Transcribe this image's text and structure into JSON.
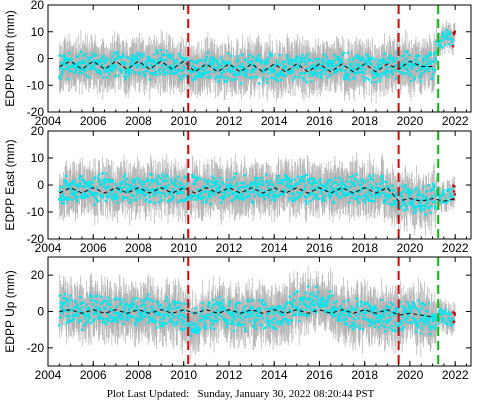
{
  "colors": {
    "data": "#00e5ee",
    "error_bars": "#b4b4b4",
    "model": "#000000",
    "event_red": "#e00000",
    "event_green": "#00c000",
    "recent": "#cc0000"
  },
  "footer": {
    "label": "Plot Last Updated:",
    "value": "Sunday, January 30, 2022 08:20:44 PST"
  },
  "chart_data": [
    {
      "type": "scatter",
      "ylabel": "EDPP North (mm)",
      "xlim": [
        2004,
        2022.7
      ],
      "ylim": [
        -20,
        20
      ],
      "yticks": [
        -20,
        -10,
        0,
        10,
        20
      ],
      "xticks": [
        2004,
        2006,
        2008,
        2010,
        2012,
        2014,
        2016,
        2018,
        2020,
        2022
      ],
      "x_tick_labels_shown": true,
      "series": [
        {
          "x": [
            2004.5,
            2005.0,
            2005.5,
            2006.0,
            2006.5,
            2007.0,
            2007.5,
            2008.0,
            2008.5,
            2009.0,
            2009.5,
            2010.0,
            2010.5,
            2011.0,
            2011.5,
            2012.0,
            2012.5,
            2013.0,
            2013.5,
            2014.0,
            2014.5,
            2015.0,
            2015.5,
            2016.0,
            2016.5,
            2017.0,
            2017.5,
            2018.0,
            2018.5,
            2019.0,
            2019.5,
            2020.0,
            2020.5,
            2021.0,
            2021.3,
            2021.6,
            2022.0
          ],
          "y": [
            -3,
            -2,
            -3,
            -2,
            -3,
            -2,
            -3,
            -2,
            -2.5,
            -2,
            -2.5,
            -3,
            -4,
            -3,
            -4,
            -3,
            -4,
            -3,
            -4,
            -3,
            -4,
            -3,
            -4,
            -3,
            -4,
            -3,
            -4,
            -3,
            -4,
            -3,
            -2,
            -3,
            -4,
            -2,
            6,
            8,
            7
          ]
        }
      ],
      "model_line": {
        "x": [
          2004.5,
          2005.0,
          2005.5,
          2006.0,
          2006.5,
          2007.0,
          2007.5,
          2008.0,
          2008.5,
          2009.0,
          2009.5,
          2010.0,
          2010.5,
          2011.0,
          2011.5,
          2012.0,
          2012.5,
          2013.0,
          2013.5,
          2014.0,
          2014.5,
          2015.0,
          2015.5,
          2016.0,
          2016.5,
          2017.0,
          2017.5,
          2018.0,
          2018.5,
          2019.0,
          2019.5,
          2020.0,
          2020.5,
          2021.0
        ],
        "y": [
          -3,
          -1,
          -4,
          -1,
          -4,
          -1,
          -4,
          -1,
          -4,
          -1,
          -4,
          -1,
          -5,
          -2,
          -5,
          -2,
          -5,
          -2,
          -5,
          -2,
          -5,
          -2,
          -5,
          -2,
          -5,
          -2,
          -5,
          -2,
          -5,
          -2,
          -4,
          -1,
          -3,
          -3
        ]
      },
      "events": [
        {
          "x": 2010.2,
          "color": "red"
        },
        {
          "x": 2019.5,
          "color": "red"
        },
        {
          "x": 2021.25,
          "color": "green"
        }
      ],
      "spread_mm": 5
    },
    {
      "type": "scatter",
      "ylabel": "EDPP East (mm)",
      "xlim": [
        2004,
        2022.7
      ],
      "ylim": [
        -20,
        20
      ],
      "yticks": [
        -20,
        -10,
        0,
        10,
        20
      ],
      "xticks": [
        2004,
        2006,
        2008,
        2010,
        2012,
        2014,
        2016,
        2018,
        2020,
        2022
      ],
      "x_tick_labels_shown": true,
      "series": [
        {
          "x": [
            2004.5,
            2005.0,
            2005.5,
            2006.0,
            2006.5,
            2007.0,
            2007.5,
            2008.0,
            2008.5,
            2009.0,
            2009.5,
            2010.0,
            2010.5,
            2011.0,
            2011.5,
            2012.0,
            2012.5,
            2013.0,
            2013.5,
            2014.0,
            2014.5,
            2015.0,
            2015.5,
            2016.0,
            2016.5,
            2017.0,
            2017.5,
            2018.0,
            2018.5,
            2019.0,
            2019.5,
            2020.0,
            2020.5,
            2021.0,
            2021.3,
            2021.6,
            2022.0
          ],
          "y": [
            -2,
            -2,
            -1,
            -2,
            -1,
            -2,
            -1,
            -2,
            -1,
            -2,
            -1,
            -2,
            -1,
            -2,
            -1,
            -2,
            -1,
            -2,
            -1,
            -2,
            -1,
            -2,
            -1,
            -2,
            -1,
            -2,
            -1,
            -2,
            -1,
            -2,
            -6,
            -5,
            -6,
            -5,
            -5,
            -4,
            -3
          ]
        }
      ],
      "model_line": {
        "x": [
          2004.5,
          2005.0,
          2005.5,
          2006.0,
          2006.5,
          2007.0,
          2007.5,
          2008.0,
          2008.5,
          2009.0,
          2009.5,
          2010.0,
          2010.5,
          2011.0,
          2011.5,
          2012.0,
          2012.5,
          2013.0,
          2013.5,
          2014.0,
          2014.5,
          2015.0,
          2015.5,
          2016.0,
          2016.5,
          2017.0,
          2017.5,
          2018.0,
          2018.5,
          2019.0,
          2019.5,
          2020.0,
          2020.5,
          2021.0,
          2021.5,
          2022.0
        ],
        "y": [
          -3,
          -1,
          -3,
          -1,
          -3,
          -1,
          -3,
          -1,
          -3,
          -1,
          -3,
          -1,
          -3,
          -1,
          -3,
          -1,
          -3,
          -1,
          -3,
          -1,
          -3,
          -1,
          -3,
          -1,
          -3,
          -1,
          -3,
          -1,
          -3,
          -1,
          -6,
          -5,
          -6,
          -5,
          -6,
          -5
        ]
      },
      "events": [
        {
          "x": 2010.2,
          "color": "red"
        },
        {
          "x": 2019.5,
          "color": "red"
        },
        {
          "x": 2021.25,
          "color": "green"
        }
      ],
      "spread_mm": 5
    },
    {
      "type": "scatter",
      "ylabel": "EDPP Up (mm)",
      "xlim": [
        2004,
        2022.7
      ],
      "ylim": [
        -30,
        30
      ],
      "yticks": [
        -20,
        0,
        20
      ],
      "xticks": [
        2004,
        2006,
        2008,
        2010,
        2012,
        2014,
        2016,
        2018,
        2020,
        2022
      ],
      "x_tick_labels_shown": true,
      "series": [
        {
          "x": [
            2004.5,
            2005.0,
            2005.5,
            2006.0,
            2006.5,
            2007.0,
            2007.5,
            2008.0,
            2008.5,
            2009.0,
            2009.5,
            2010.0,
            2010.5,
            2011.0,
            2011.5,
            2012.0,
            2012.5,
            2013.0,
            2013.5,
            2014.0,
            2014.5,
            2015.0,
            2015.5,
            2016.0,
            2016.5,
            2017.0,
            2017.5,
            2018.0,
            2018.5,
            2019.0,
            2019.5,
            2020.0,
            2020.5,
            2021.0,
            2021.5,
            2022.0
          ],
          "y": [
            1,
            2,
            -1,
            1,
            0,
            2,
            -1,
            0,
            1,
            -2,
            0,
            -1,
            -6,
            -3,
            0,
            -2,
            -3,
            -2,
            -1,
            -3,
            -1,
            2,
            5,
            6,
            3,
            0,
            -2,
            -1,
            -2,
            -3,
            -4,
            -2,
            -3,
            -4,
            -3,
            -5
          ]
        }
      ],
      "model_line": {
        "x": [
          2004.5,
          2005.0,
          2005.5,
          2006.0,
          2006.5,
          2007.0,
          2007.5,
          2008.0,
          2008.5,
          2009.0,
          2009.5,
          2010.0,
          2010.5,
          2011.0,
          2011.5,
          2012.0,
          2012.5,
          2013.0,
          2013.5,
          2014.0,
          2014.5,
          2015.0,
          2015.5,
          2016.0,
          2016.5,
          2017.0,
          2017.5,
          2018.0,
          2018.5,
          2019.0,
          2019.5,
          2020.0,
          2020.5,
          2021.0
        ],
        "y": [
          0,
          1,
          -1,
          1,
          -1,
          1,
          -1,
          1,
          -1,
          1,
          -1,
          1,
          -1,
          1,
          -1,
          1,
          -1,
          1,
          -1,
          1,
          -1,
          1,
          -1,
          1,
          -1,
          1,
          -1,
          1,
          -1,
          1,
          -2,
          -1,
          -2,
          -3
        ]
      },
      "events": [
        {
          "x": 2010.2,
          "color": "red"
        },
        {
          "x": 2019.5,
          "color": "red"
        },
        {
          "x": 2021.25,
          "color": "green"
        }
      ],
      "spread_mm": 8
    }
  ]
}
